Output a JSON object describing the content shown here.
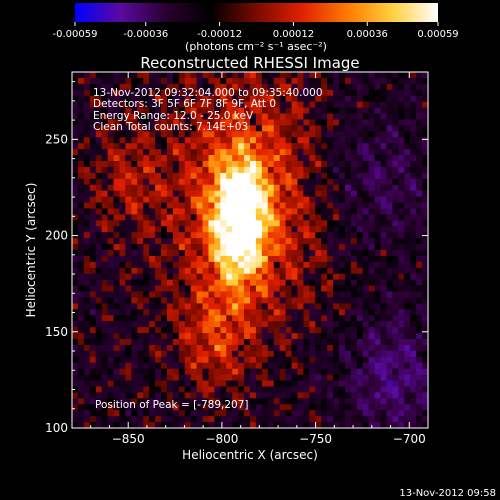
{
  "chart_data": {
    "type": "heatmap",
    "title": "Reconstructed RHESSI Image",
    "xlabel": "Heliocentric X (arcsec)",
    "ylabel": "Heliocentric Y (arcsec)",
    "xlim": [
      -880,
      -690
    ],
    "ylim": [
      100,
      285
    ],
    "x_ticks": [
      -850,
      -800,
      -750,
      -700
    ],
    "y_ticks": [
      100,
      150,
      200,
      250
    ],
    "colorbar": {
      "min": -0.00059,
      "max": 0.00059,
      "ticks": [
        "-0.00059",
        "-0.00036",
        "-0.00012",
        "0.00012",
        "0.00036",
        "0.00059"
      ],
      "unit_label": "(photons cm⁻² s⁻¹ asec⁻²)",
      "colormap": [
        "#0000ff",
        "#5a0aa0",
        "#2a0030",
        "#000000",
        "#7a0a00",
        "#e02000",
        "#ff7a00",
        "#ffd040",
        "#ffffff"
      ]
    },
    "annotations": [
      "13-Nov-2012 09:32:04.000 to 09:35:40.000",
      "Detectors: 3F 5F 6F 7F 8F 9F, Att 0",
      "Energy Range: 12.0 - 25.0 keV",
      "Clean     Total counts: 7.14E+03"
    ],
    "peak_label": "Position of Peak = [-789,207]",
    "peak": [
      -789,
      207
    ],
    "grid": false
  },
  "footer": {
    "timestamp": "13-Nov-2012 09:58"
  }
}
